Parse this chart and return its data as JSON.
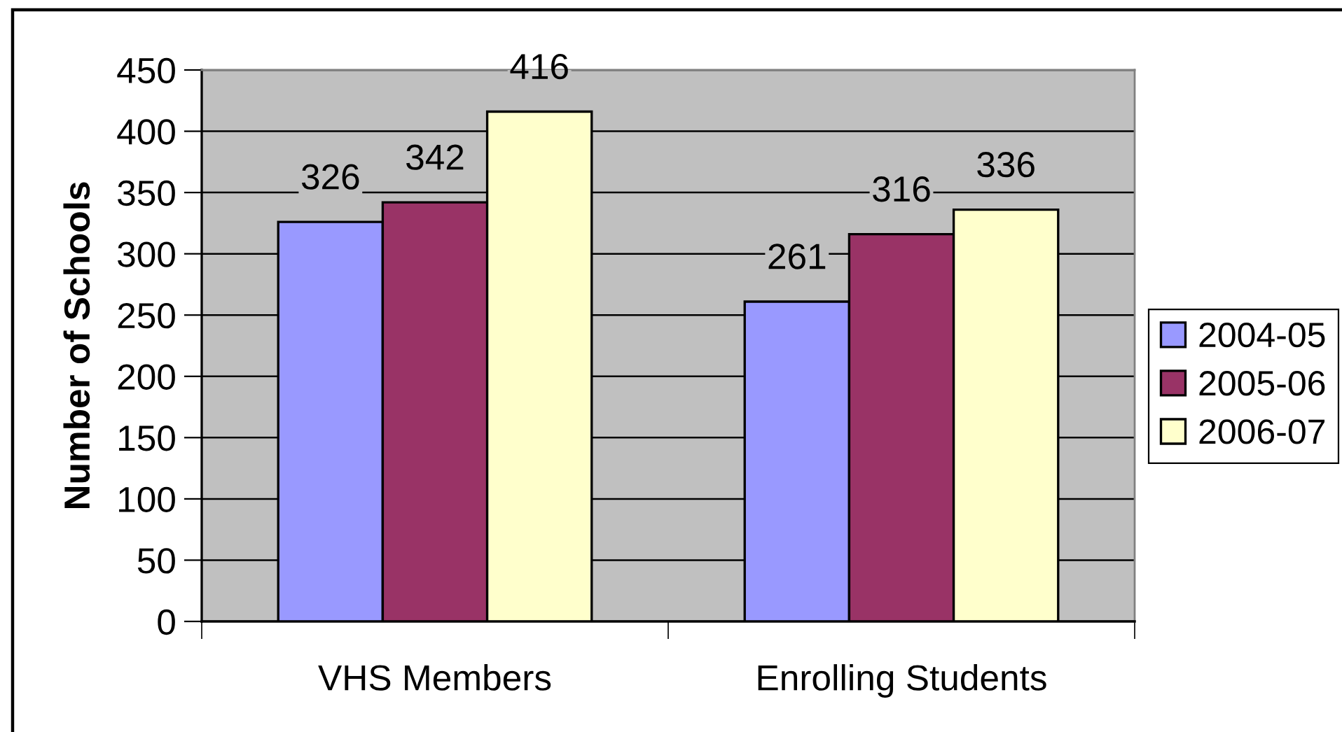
{
  "chart_data": {
    "type": "bar",
    "ylabel": "Number of Schools",
    "categories": [
      "VHS Members",
      "Enrolling Students"
    ],
    "series": [
      {
        "name": "2004-05",
        "color": "#9999ff",
        "values": [
          326,
          261
        ]
      },
      {
        "name": "2005-06",
        "color": "#993366",
        "values": [
          342,
          316
        ]
      },
      {
        "name": "2006-07",
        "color": "#ffffcc",
        "values": [
          416,
          336
        ]
      }
    ],
    "ylim": [
      0,
      450
    ],
    "yticks": [
      0,
      50,
      100,
      150,
      200,
      250,
      300,
      350,
      400,
      450
    ],
    "grid": "y",
    "legend": "right",
    "data_labels": true
  }
}
